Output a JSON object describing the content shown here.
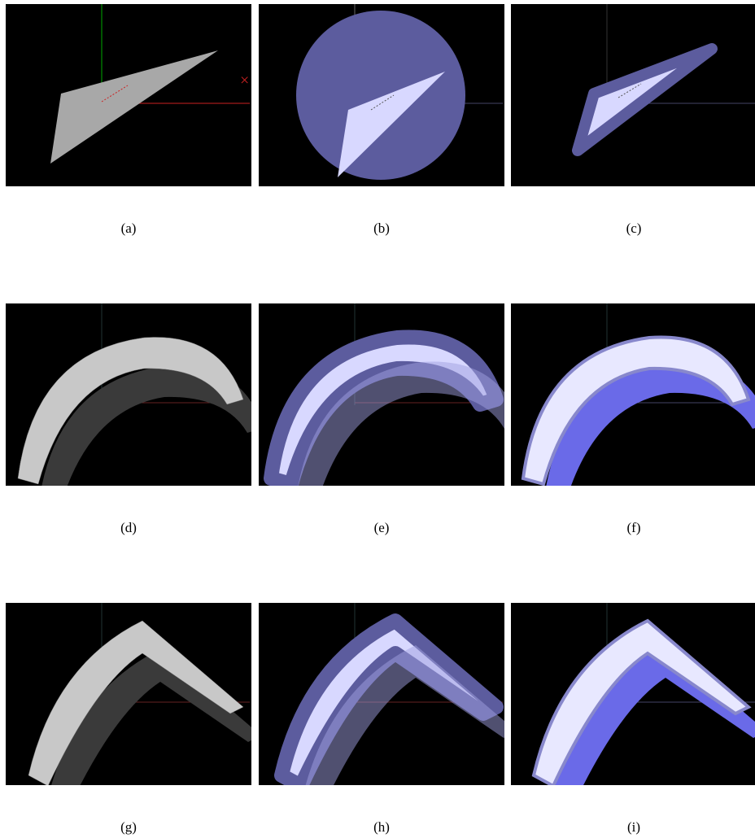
{
  "captions": [
    "(a)",
    "(b)",
    "(c)",
    "(d)",
    "(e)",
    "(f)",
    "(g)",
    "(h)",
    "(i)"
  ]
}
